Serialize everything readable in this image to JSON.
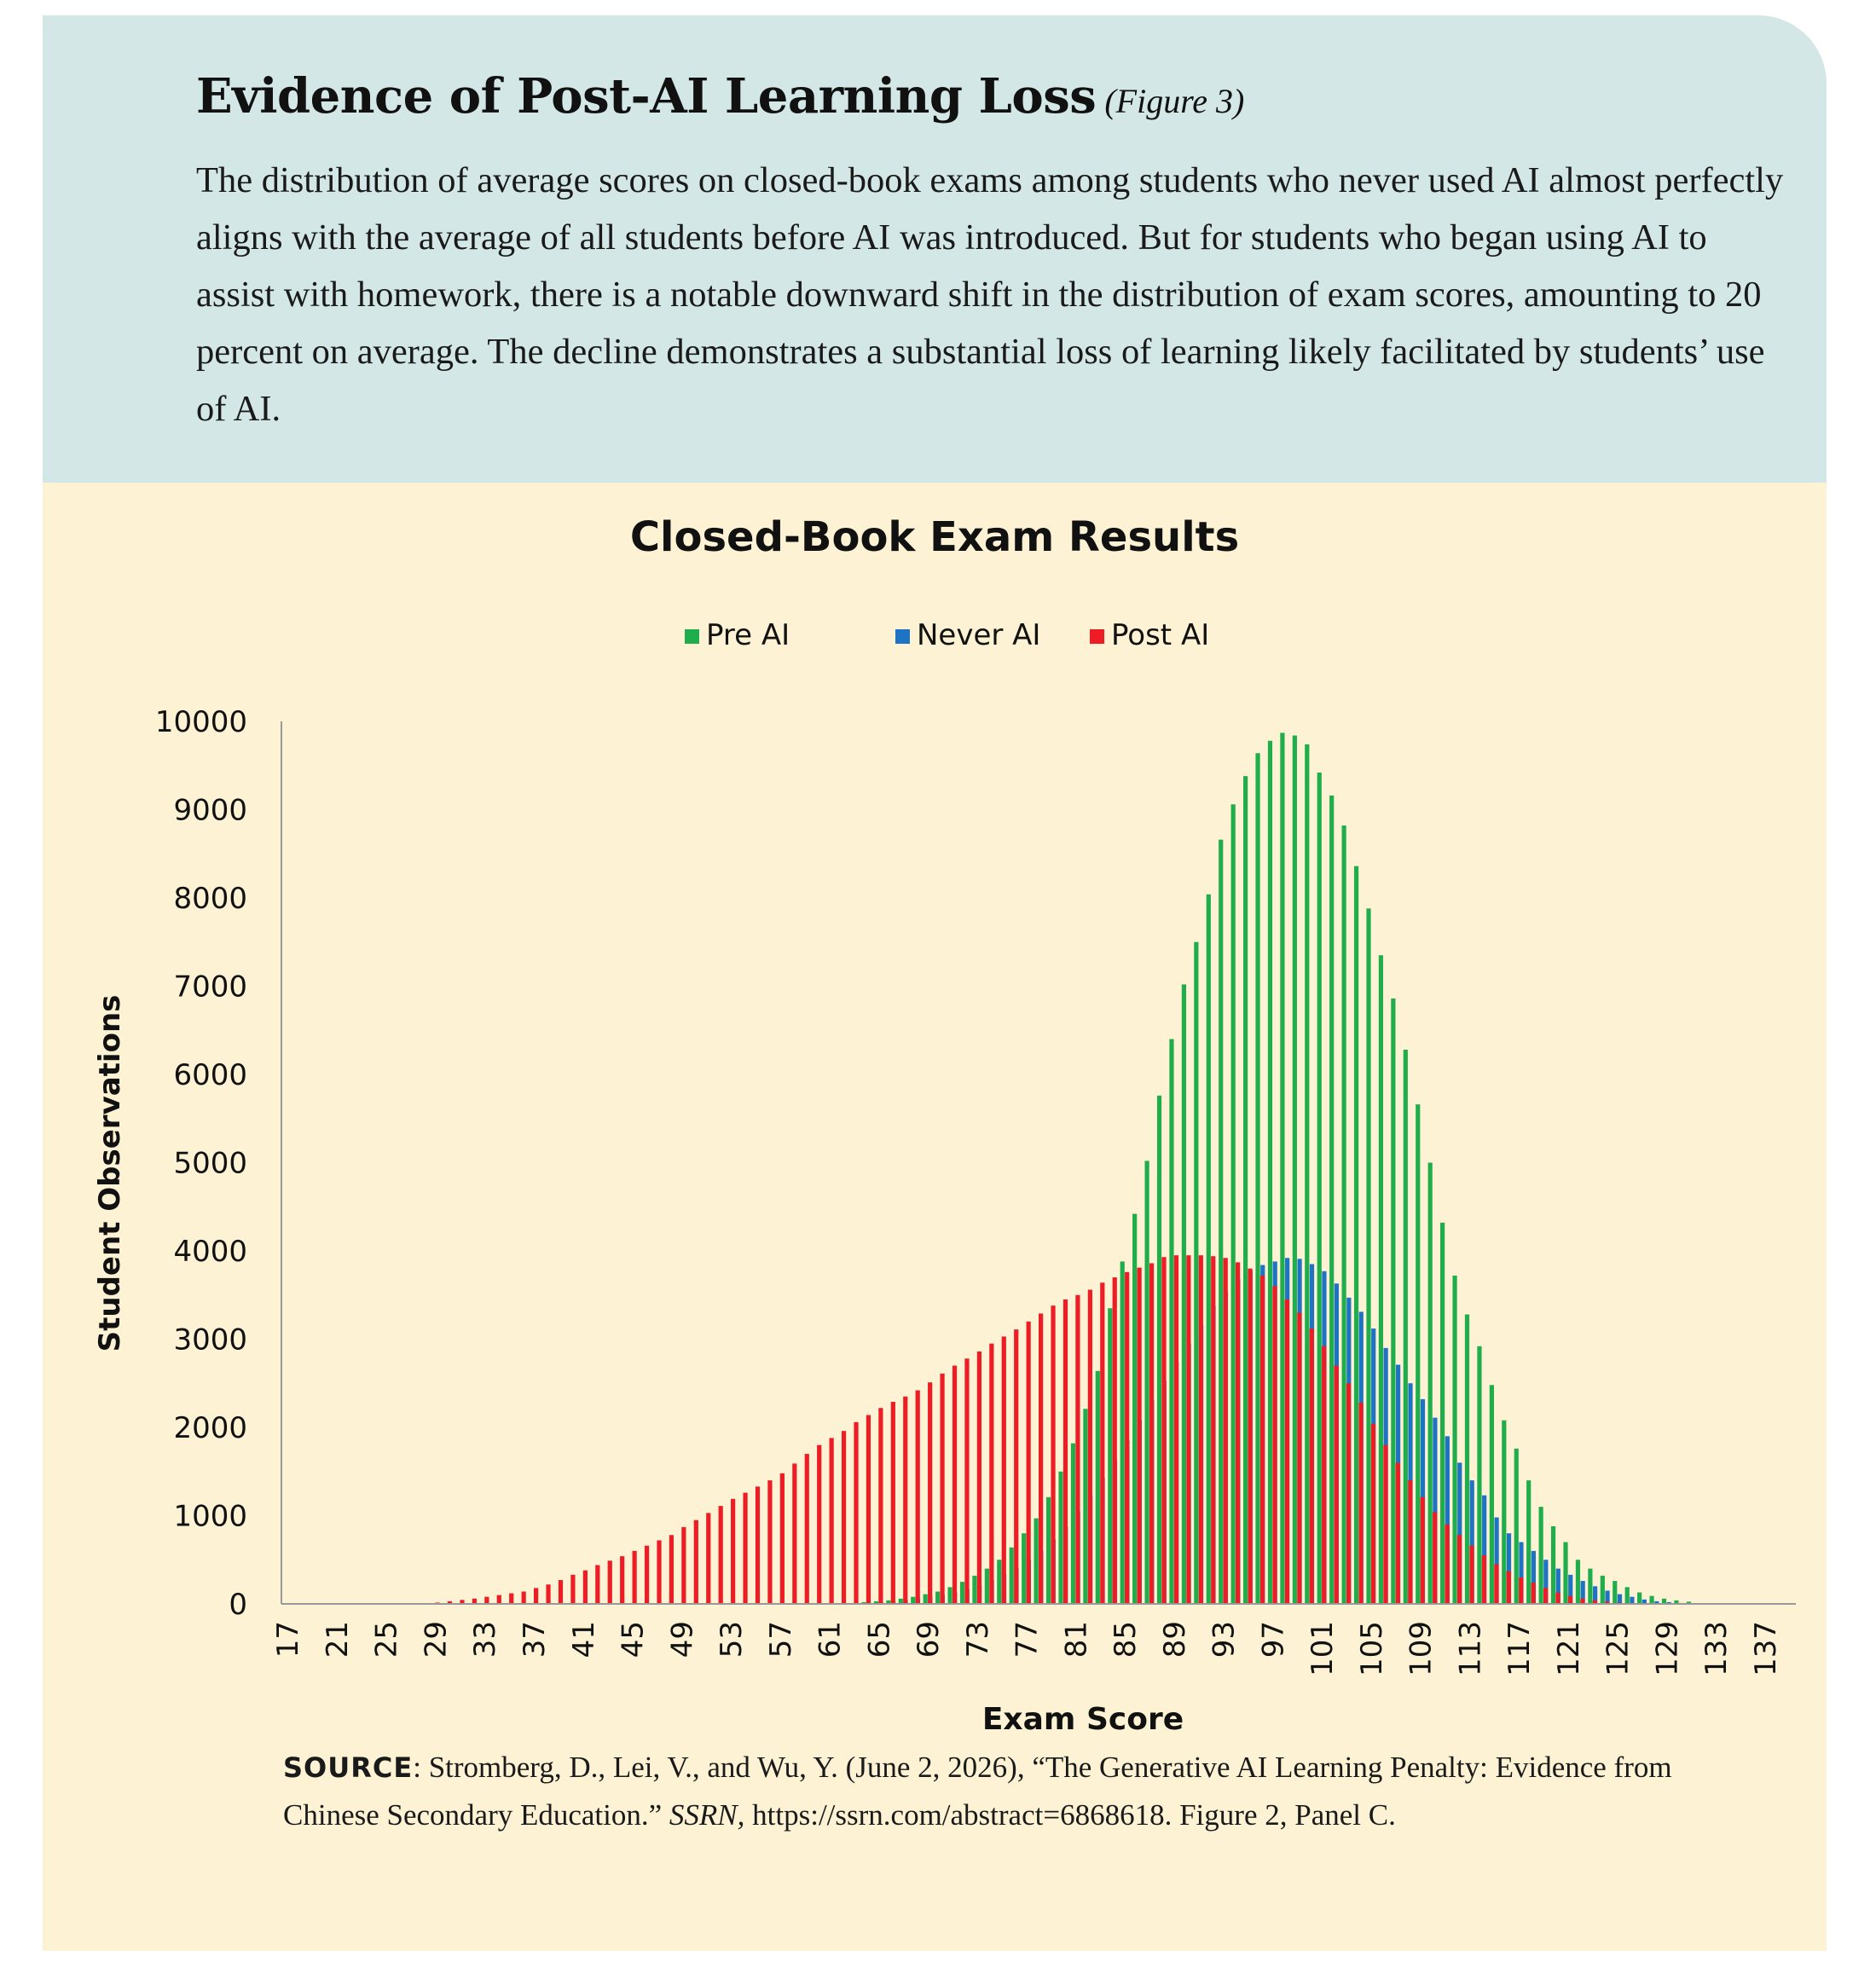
{
  "header": {
    "title": "Evidence of Post-AI Learning Loss",
    "figure_label": "(Figure 3)",
    "description": "The distribution of average scores on closed-book exams among students who never used AI almost perfectly aligns with the average of all students before AI was introduced. But for students who began using AI to assist with homework, there is a notable downward shift in the distribution of exam scores, amounting to 20 percent on average. The decline demonstrates a substantial loss of learning likely facilitated by students’ use of AI."
  },
  "source": {
    "label": "SOURCE",
    "text_before": ": Stromberg, D., Lei, V., and Wu, Y. (June 2, 2026), “The Generative AI Learning Penalty: Evidence from Chinese Secondary Education.”",
    "journal": "SSRN,",
    "text_after": " https://ssrn.com/abstract=6868618. Figure 2, Panel C."
  },
  "colors": {
    "pre": "#1fae4b",
    "never": "#1f73c4",
    "post": "#ee1c25",
    "axis": "#999999"
  },
  "chart_data": {
    "type": "bar",
    "title": "Closed-Book Exam Results",
    "xlabel": "Exam Score",
    "ylabel": "Student Observations",
    "ylim": [
      0,
      10000
    ],
    "yticks": [
      0,
      1000,
      2000,
      3000,
      4000,
      5000,
      6000,
      7000,
      8000,
      9000,
      10000
    ],
    "xtick_labels": [
      17,
      21,
      25,
      29,
      33,
      37,
      41,
      45,
      49,
      53,
      57,
      61,
      65,
      69,
      73,
      77,
      81,
      85,
      89,
      93,
      97,
      101,
      105,
      109,
      113,
      117,
      121,
      125,
      129,
      133,
      137
    ],
    "x_start": 17,
    "x_end": 139,
    "legend_position": "top-center",
    "grid": false,
    "series": [
      {
        "name": "Pre AI",
        "x_start": 64,
        "values": [
          20,
          30,
          40,
          60,
          80,
          110,
          140,
          190,
          250,
          320,
          400,
          500,
          640,
          800,
          970,
          1210,
          1500,
          1820,
          2210,
          2640,
          3350,
          3880,
          4420,
          5020,
          5760,
          6400,
          7020,
          7500,
          8040,
          8660,
          9060,
          9380,
          9640,
          9780,
          9870,
          9840,
          9740,
          9420,
          9160,
          8820,
          8360,
          7880,
          7350,
          6860,
          6280,
          5660,
          5000,
          4320,
          3720,
          3280,
          2920,
          2480,
          2080,
          1760,
          1400,
          1100,
          880,
          700,
          500,
          400,
          320,
          260,
          190,
          130,
          90,
          60,
          40,
          25
        ]
      },
      {
        "name": "Never AI",
        "x_start": 64,
        "values": [
          10,
          20,
          30,
          40,
          60,
          80,
          100,
          130,
          170,
          210,
          270,
          330,
          410,
          500,
          600,
          730,
          880,
          1050,
          1230,
          1430,
          1630,
          1850,
          2080,
          2310,
          2530,
          2740,
          2950,
          3160,
          3380,
          3540,
          3680,
          3780,
          3840,
          3880,
          3920,
          3910,
          3850,
          3770,
          3630,
          3470,
          3310,
          3120,
          2900,
          2710,
          2500,
          2320,
          2110,
          1900,
          1600,
          1400,
          1230,
          980,
          800,
          700,
          600,
          500,
          400,
          330,
          260,
          200,
          150,
          110,
          80,
          50,
          30,
          20,
          10,
          5
        ]
      },
      {
        "name": "Post AI",
        "x_start": 28,
        "values": [
          5,
          15,
          30,
          45,
          60,
          80,
          100,
          120,
          140,
          180,
          220,
          270,
          330,
          380,
          440,
          490,
          540,
          600,
          660,
          720,
          780,
          870,
          950,
          1030,
          1110,
          1190,
          1260,
          1330,
          1400,
          1480,
          1590,
          1700,
          1800,
          1880,
          1960,
          2060,
          2140,
          2220,
          2290,
          2350,
          2420,
          2510,
          2610,
          2700,
          2780,
          2860,
          2950,
          3030,
          3110,
          3200,
          3290,
          3380,
          3450,
          3500,
          3560,
          3640,
          3700,
          3760,
          3810,
          3860,
          3930,
          3950,
          3950,
          3950,
          3940,
          3920,
          3870,
          3800,
          3720,
          3600,
          3450,
          3300,
          3120,
          2920,
          2700,
          2500,
          2280,
          2040,
          1800,
          1600,
          1400,
          1210,
          1040,
          900,
          780,
          660,
          550,
          450,
          370,
          300,
          240,
          180,
          130,
          90,
          60,
          40,
          25,
          15,
          8,
          4
        ]
      }
    ]
  }
}
